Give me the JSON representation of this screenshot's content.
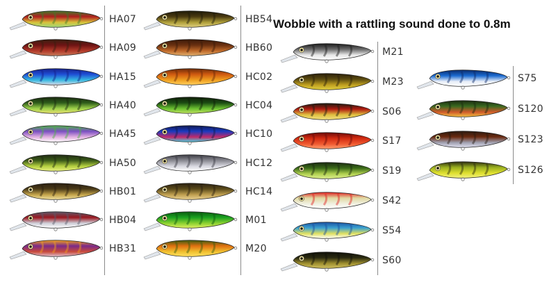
{
  "title": "Wobble with a rattling sound done to 0.8m",
  "columns": [
    {
      "items": [
        {
          "code": "HA07",
          "colors": [
            "#b01e1e",
            "#d8c23a",
            "#3f7a2a",
            "#9bd87a"
          ]
        },
        {
          "code": "HA09",
          "colors": [
            "#6e1414",
            "#b33a2a",
            "#3a2010",
            "#c57a5a"
          ]
        },
        {
          "code": "HA15",
          "colors": [
            "#1f4fd6",
            "#36b9e0",
            "#15208a",
            "#d9d9e8"
          ]
        },
        {
          "code": "HA40",
          "colors": [
            "#2e5c1a",
            "#9ed24a",
            "#1a2a10",
            "#e8e070"
          ]
        },
        {
          "code": "HA45",
          "colors": [
            "#7b4fc2",
            "#e2b0e0",
            "#4fb24a",
            "#ffffff"
          ]
        },
        {
          "code": "HA50",
          "colors": [
            "#3a5a18",
            "#b5d040",
            "#1f2a12",
            "#e8f080"
          ]
        },
        {
          "code": "HB01",
          "colors": [
            "#4a3a18",
            "#c4a44a",
            "#2a1f10",
            "#f0e0a0"
          ]
        },
        {
          "code": "HB04",
          "colors": [
            "#9a1820",
            "#cfcfd8",
            "#5a5a6a",
            "#ffffff"
          ]
        },
        {
          "code": "HB31",
          "colors": [
            "#7a2a8a",
            "#c84a3a",
            "#f0a020",
            "#e0c0d0"
          ]
        }
      ]
    },
    {
      "items": [
        {
          "code": "HB54",
          "colors": [
            "#4a3a10",
            "#b0a03a",
            "#1f1a08",
            "#e0d080"
          ]
        },
        {
          "code": "HB60",
          "colors": [
            "#6a3010",
            "#c06a2a",
            "#3a1a08",
            "#e0b070"
          ]
        },
        {
          "code": "HC02",
          "colors": [
            "#d05a10",
            "#f0a020",
            "#6a2a08",
            "#ffd060"
          ]
        },
        {
          "code": "HC04",
          "colors": [
            "#1a4a12",
            "#6ac030",
            "#0f1f08",
            "#c0e060"
          ]
        },
        {
          "code": "HC10",
          "colors": [
            "#1a3ac0",
            "#c02a6a",
            "#101a50",
            "#4ad0e0"
          ]
        },
        {
          "code": "HC12",
          "colors": [
            "#8a8a92",
            "#d8d8e0",
            "#3a3a42",
            "#ffffff"
          ]
        },
        {
          "code": "HC14",
          "colors": [
            "#5a4a1a",
            "#c0a050",
            "#2a2010",
            "#e8d090"
          ]
        },
        {
          "code": "M01",
          "colors": [
            "#1aa020",
            "#8ad030",
            "#0a5a10",
            "#e0f060"
          ]
        },
        {
          "code": "M20",
          "colors": [
            "#e07010",
            "#f0c030",
            "#3a5a10",
            "#ffe060"
          ]
        }
      ]
    },
    {
      "items": [
        {
          "code": "M21",
          "colors": [
            "#6a6a6a",
            "#e8e8e8",
            "#1a1a1a",
            "#ffffff"
          ]
        },
        {
          "code": "M23",
          "colors": [
            "#5a4a10",
            "#c0a020",
            "#2a1f08",
            "#e0d040"
          ]
        },
        {
          "code": "S06",
          "colors": [
            "#b01a10",
            "#e0c040",
            "#1a1a10",
            "#f0e080"
          ]
        },
        {
          "code": "S17",
          "colors": [
            "#d02a10",
            "#f05a30",
            "#6a0a08",
            "#ffa070"
          ]
        },
        {
          "code": "S19",
          "colors": [
            "#3a6a18",
            "#b0d050",
            "#1a2a10",
            "#e0f090"
          ]
        },
        {
          "code": "S42",
          "colors": [
            "#e0d8a0",
            "#f0f0e0",
            "#e02020",
            "#ffffff"
          ]
        },
        {
          "code": "S54",
          "colors": [
            "#3aa0d0",
            "#e0e060",
            "#1a50a0",
            "#ffffff"
          ]
        },
        {
          "code": "S60",
          "colors": [
            "#2a2a10",
            "#a09030",
            "#101008",
            "#d0c060"
          ]
        }
      ]
    },
    {
      "items": [
        {
          "code": "S75",
          "colors": [
            "#1a6ad0",
            "#e8eef8",
            "#0a2a6a",
            "#ffffff"
          ]
        },
        {
          "code": "S120",
          "colors": [
            "#3a6a20",
            "#d05a2a",
            "#1a2a10",
            "#f0c040"
          ]
        },
        {
          "code": "S123",
          "colors": [
            "#6a2a10",
            "#a0a0b0",
            "#2a1a10",
            "#e0e0f0"
          ]
        },
        {
          "code": "S126",
          "colors": [
            "#9ab020",
            "#e0e030",
            "#2a2a10",
            "#f0f080"
          ]
        }
      ]
    }
  ]
}
